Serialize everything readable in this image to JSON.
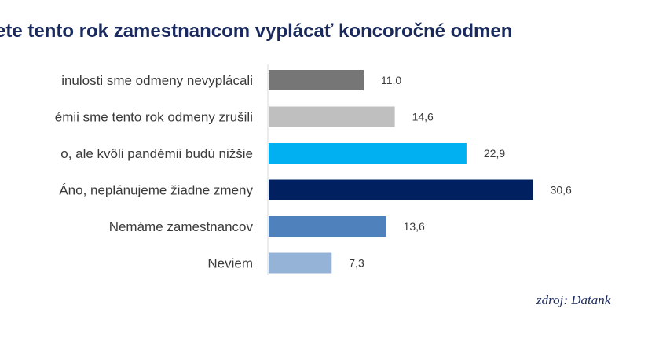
{
  "chart_data": {
    "type": "bar",
    "orientation": "horizontal",
    "title": "ete tento rok zamestnancom  vyplácať koncoročné odmen",
    "categories": [
      "inulosti sme odmeny nevyplácali",
      "émii sme tento rok odmeny zrušili",
      "o, ale kvôli pandémii budú nižšie",
      "Áno, neplánujeme žiadne zmeny",
      "Nemáme zamestnancov",
      "Neviem"
    ],
    "values": [
      11.0,
      14.6,
      22.9,
      30.6,
      13.6,
      7.3
    ],
    "value_labels": [
      "11,0",
      "14,6",
      "22,9",
      "30,6",
      "13,6",
      "7,3"
    ],
    "colors": [
      "#767676",
      "#bfbfbf",
      "#00b0f0",
      "#002060",
      "#4f81bd",
      "#95b3d7"
    ],
    "xlim": [
      0,
      35
    ],
    "xlabel": "",
    "ylabel": "",
    "grid": false,
    "legend": "none"
  },
  "source": {
    "text": "zdroj: Datank"
  }
}
